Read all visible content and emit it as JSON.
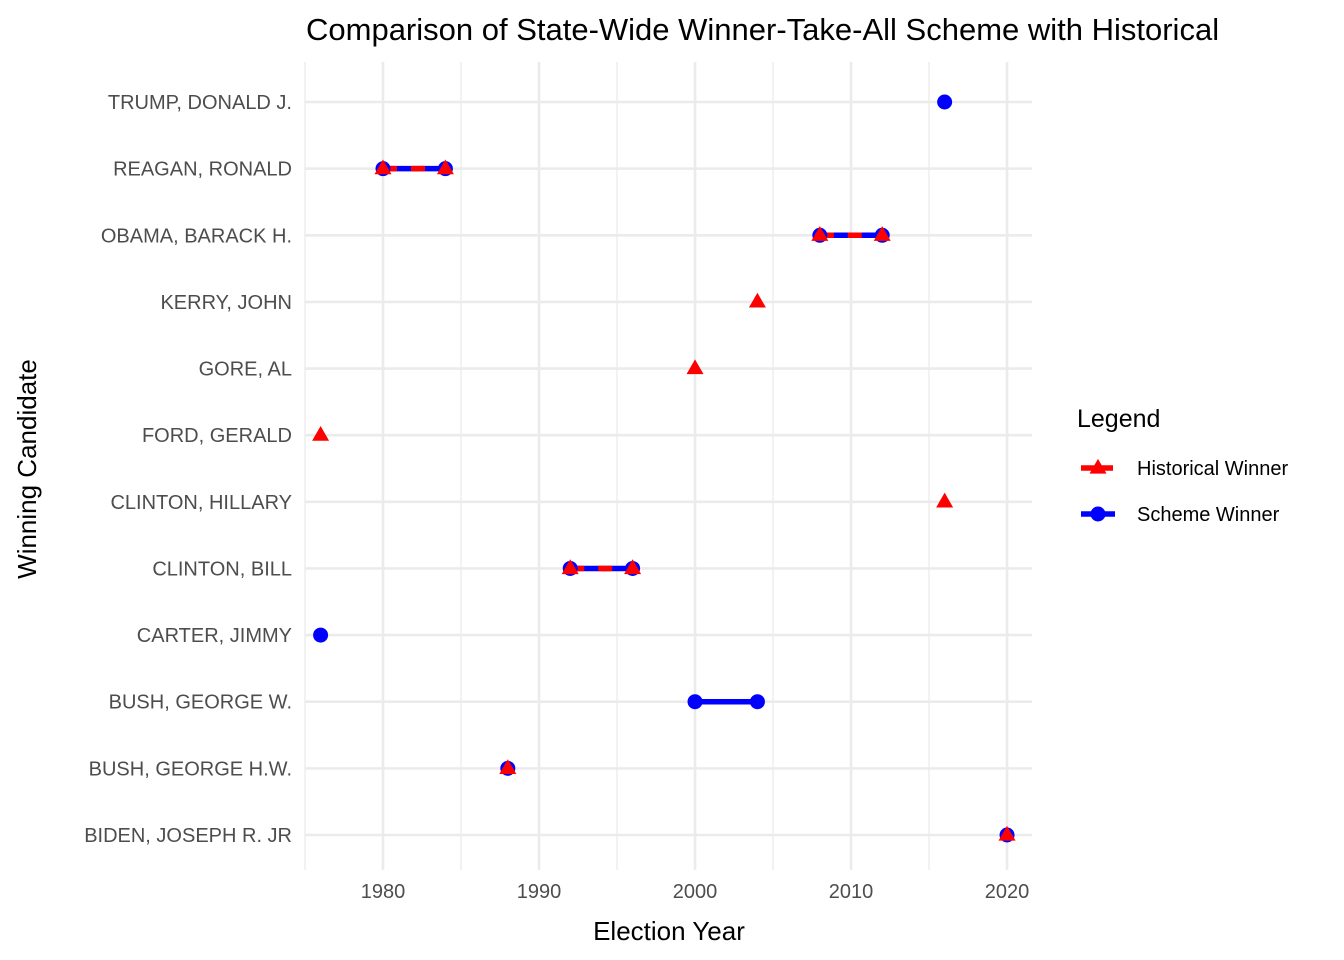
{
  "chart_data": {
    "type": "scatter",
    "title": "Comparison of State-Wide Winner-Take-All Scheme with Historical",
    "xlabel": "Election Year",
    "ylabel": "Winning Candidate",
    "xlim": [
      1975,
      2021.6
    ],
    "x_ticks": [
      "1980",
      "1990",
      "2000",
      "2010",
      "2020"
    ],
    "x_tick_values": [
      1980,
      1990,
      2000,
      2010,
      2020
    ],
    "categories": [
      "BIDEN, JOSEPH R. JR",
      "BUSH, GEORGE H.W.",
      "BUSH, GEORGE W.",
      "CARTER, JIMMY",
      "CLINTON, BILL",
      "CLINTON, HILLARY",
      "FORD, GERALD",
      "GORE, AL",
      "KERRY, JOHN",
      "OBAMA, BARACK H.",
      "REAGAN, RONALD",
      "TRUMP, DONALD J."
    ],
    "legend_title": "Legend",
    "legend_position": "right",
    "grid": true,
    "series": [
      {
        "name": "Historical Winner",
        "color": "#FF0000",
        "marker": "triangle",
        "points": [
          {
            "candidate": "FORD, GERALD",
            "year": 1976
          },
          {
            "candidate": "REAGAN, RONALD",
            "year": 1980
          },
          {
            "candidate": "REAGAN, RONALD",
            "year": 1984
          },
          {
            "candidate": "BUSH, GEORGE H.W.",
            "year": 1988
          },
          {
            "candidate": "CLINTON, BILL",
            "year": 1992
          },
          {
            "candidate": "CLINTON, BILL",
            "year": 1996
          },
          {
            "candidate": "GORE, AL",
            "year": 2000
          },
          {
            "candidate": "KERRY, JOHN",
            "year": 2004
          },
          {
            "candidate": "OBAMA, BARACK H.",
            "year": 2008
          },
          {
            "candidate": "OBAMA, BARACK H.",
            "year": 2012
          },
          {
            "candidate": "CLINTON, HILLARY",
            "year": 2016
          },
          {
            "candidate": "BIDEN, JOSEPH R. JR",
            "year": 2020
          }
        ]
      },
      {
        "name": "Scheme Winner",
        "color": "#0000FF",
        "marker": "circle",
        "points": [
          {
            "candidate": "CARTER, JIMMY",
            "year": 1976
          },
          {
            "candidate": "REAGAN, RONALD",
            "year": 1980
          },
          {
            "candidate": "REAGAN, RONALD",
            "year": 1984
          },
          {
            "candidate": "BUSH, GEORGE H.W.",
            "year": 1988
          },
          {
            "candidate": "CLINTON, BILL",
            "year": 1992
          },
          {
            "candidate": "CLINTON, BILL",
            "year": 1996
          },
          {
            "candidate": "BUSH, GEORGE W.",
            "year": 2000
          },
          {
            "candidate": "BUSH, GEORGE W.",
            "year": 2004
          },
          {
            "candidate": "OBAMA, BARACK H.",
            "year": 2008
          },
          {
            "candidate": "OBAMA, BARACK H.",
            "year": 2012
          },
          {
            "candidate": "TRUMP, DONALD J.",
            "year": 2016
          },
          {
            "candidate": "BIDEN, JOSEPH R. JR",
            "year": 2020
          }
        ]
      }
    ]
  }
}
